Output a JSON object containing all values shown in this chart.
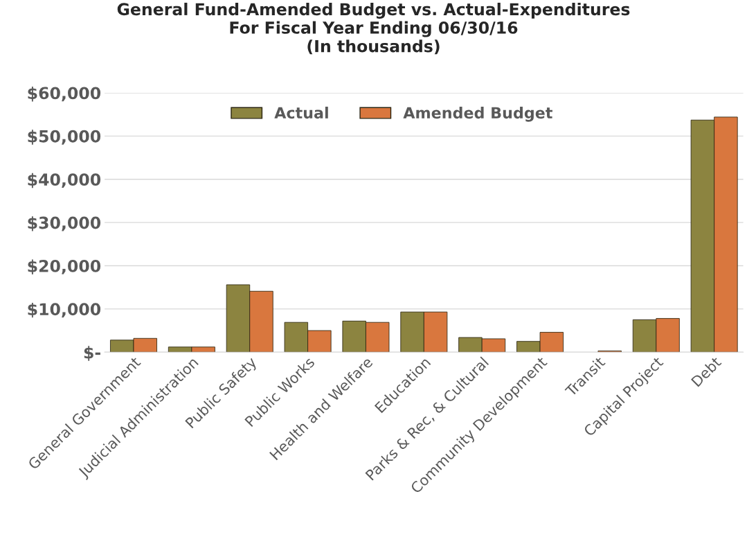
{
  "chart_data": {
    "type": "bar",
    "title": "General Fund-Amended Budget vs. Actual-Expenditures\nFor Fiscal Year Ending 06/30/16\n(In thousands)",
    "categories": [
      "General Government",
      "Judicial Administration",
      "Public Safety",
      "Public Works",
      "Health and Welfare",
      "Education",
      "Parks & Rec, & Cultural",
      "Community Development",
      "Transit",
      "Capital Project",
      "Debt"
    ],
    "series": [
      {
        "name": "Actual",
        "color": "#8c8440",
        "values": [
          2800,
          1200,
          15600,
          6900,
          7200,
          9300,
          3400,
          2500,
          null,
          7500,
          53700
        ]
      },
      {
        "name": "Amended Budget",
        "color": "#d9773e",
        "values": [
          3200,
          1200,
          14100,
          5000,
          6900,
          9300,
          3100,
          4600,
          300,
          7800,
          54400
        ]
      }
    ],
    "ylim": [
      0,
      60000
    ],
    "yticks": [
      {
        "value": 0,
        "label": "$-"
      },
      {
        "value": 10000,
        "label": "$10,000"
      },
      {
        "value": 20000,
        "label": "$20,000"
      },
      {
        "value": 30000,
        "label": "$30,000"
      },
      {
        "value": 40000,
        "label": "$40,000"
      },
      {
        "value": 50000,
        "label": "$50,000"
      },
      {
        "value": 60000,
        "label": "$60,000"
      }
    ],
    "grid": "y",
    "legend": "top"
  }
}
